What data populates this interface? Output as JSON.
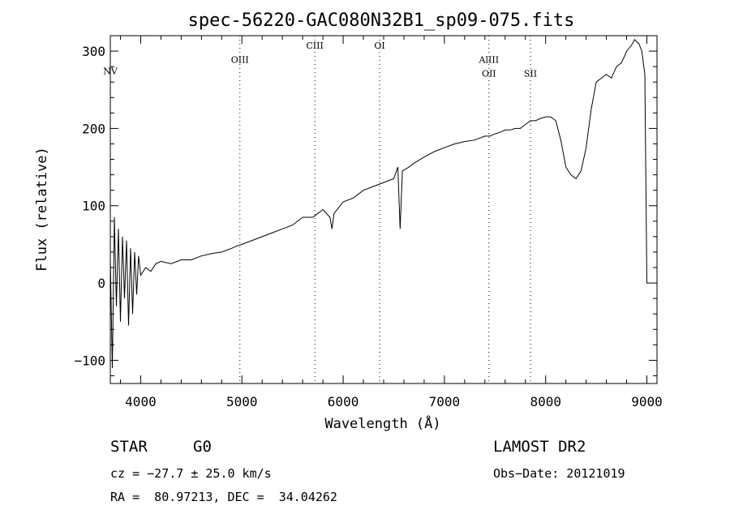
{
  "chart_data": {
    "type": "line",
    "title": "spec-56220-GAC080N32B1_sp09-075.fits",
    "xlabel": "Wavelength (Å)",
    "ylabel": "Flux (relative)",
    "xlim": [
      3700,
      9100
    ],
    "ylim": [
      -130,
      320
    ],
    "xticks": [
      {
        "value": 4000,
        "label": "4000"
      },
      {
        "value": 5000,
        "label": "5000"
      },
      {
        "value": 6000,
        "label": "6000"
      },
      {
        "value": 7000,
        "label": "7000"
      },
      {
        "value": 8000,
        "label": "8000"
      },
      {
        "value": 9000,
        "label": "9000"
      }
    ],
    "yticks": [
      {
        "value": 300,
        "label": "300"
      },
      {
        "value": 200,
        "label": "200"
      },
      {
        "value": 100,
        "label": "100"
      },
      {
        "value": 0,
        "label": "0"
      },
      {
        "value": -100,
        "label": "−100"
      }
    ],
    "grid": false,
    "legend": "none",
    "line_color": "#000000",
    "spectral_lines": [
      {
        "label": "NV",
        "wavelength": 3700,
        "label_y": 270
      },
      {
        "label": "OIII",
        "wavelength": 4980,
        "label_y": 285
      },
      {
        "label": "CIII",
        "wavelength": 5720,
        "label_y": 303
      },
      {
        "label": "OI",
        "wavelength": 6360,
        "label_y": 303
      },
      {
        "label": "AlIII",
        "wavelength": 7440,
        "label_y": 285
      },
      {
        "label": "OII",
        "wavelength": 7440,
        "label_y": 267
      },
      {
        "label": "SII",
        "wavelength": 7850,
        "label_y": 267
      }
    ],
    "series": [
      {
        "x": [
          3700,
          3720,
          3740,
          3760,
          3780,
          3800,
          3820,
          3840,
          3860,
          3880,
          3900,
          3920,
          3940,
          3960,
          3980,
          4000,
          4050,
          4100,
          4150,
          4200,
          4300,
          4400,
          4500,
          4600,
          4700,
          4800,
          4900,
          4950,
          5000,
          5100,
          5200,
          5300,
          5400,
          5500,
          5600,
          5700,
          5750,
          5800,
          5870,
          5890,
          5910,
          6000,
          6100,
          6200,
          6300,
          6400,
          6500,
          6540,
          6563,
          6585,
          6650,
          6700,
          6800,
          6900,
          7000,
          7100,
          7200,
          7300,
          7400,
          7450,
          7500,
          7550,
          7600,
          7650,
          7700,
          7750,
          7800,
          7850,
          7900,
          7950,
          8000,
          8050,
          8100,
          8150,
          8200,
          8250,
          8300,
          8350,
          8400,
          8450,
          8500,
          8550,
          8600,
          8650,
          8700,
          8750,
          8800,
          8850,
          8880,
          8900,
          8920,
          8950,
          8980,
          9000,
          9010,
          9020
        ],
        "y": [
          30,
          -110,
          85,
          -30,
          70,
          -50,
          60,
          -20,
          55,
          -55,
          45,
          -40,
          40,
          -15,
          35,
          10,
          20,
          15,
          25,
          28,
          25,
          30,
          30,
          35,
          38,
          40,
          45,
          48,
          50,
          55,
          60,
          65,
          70,
          75,
          85,
          85,
          90,
          95,
          85,
          70,
          90,
          105,
          110,
          120,
          125,
          130,
          135,
          150,
          70,
          145,
          150,
          155,
          163,
          170,
          175,
          180,
          183,
          185,
          190,
          190,
          193,
          195,
          198,
          198,
          200,
          200,
          205,
          210,
          210,
          213,
          215,
          215,
          210,
          185,
          150,
          140,
          135,
          145,
          175,
          225,
          260,
          265,
          270,
          265,
          280,
          285,
          300,
          308,
          315,
          312,
          310,
          300,
          270,
          0,
          0,
          0
        ]
      }
    ]
  },
  "footer": {
    "object_class": "STAR",
    "subclass": "G0",
    "survey": "LAMOST DR2",
    "cz": "cz = −27.7 ± 25.0 km/s",
    "obs_date": "Obs−Date: 20121019",
    "coords": "RA =  80.97213, DEC =  34.04262"
  }
}
